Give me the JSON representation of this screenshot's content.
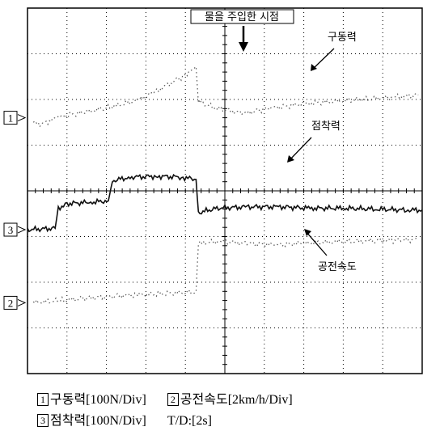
{
  "chart_data": {
    "type": "line",
    "title": "",
    "xlabel": "",
    "ylabel": "",
    "grid": true,
    "x_divisions": 10,
    "y_divisions": 8,
    "x_unit_per_div": "2s",
    "markers": [
      {
        "id": "marker-1",
        "label": "1",
        "y_div": 5.6
      },
      {
        "id": "marker-3",
        "label": "3",
        "y_div": 3.15
      },
      {
        "id": "marker-2",
        "label": "2",
        "y_div": 1.55
      }
    ],
    "event": {
      "label": "물을 주입한 시점",
      "x_div": 4.3
    },
    "series": [
      {
        "name": "구동력",
        "style": "dotted",
        "color": "#555555",
        "points": [
          [
            0.15,
            5.5
          ],
          [
            0.35,
            5.45
          ],
          [
            0.8,
            5.62
          ],
          [
            1.5,
            5.72
          ],
          [
            2.2,
            5.85
          ],
          [
            2.8,
            5.98
          ],
          [
            3.2,
            6.15
          ],
          [
            3.7,
            6.4
          ],
          [
            4.05,
            6.55
          ],
          [
            4.27,
            6.72
          ],
          [
            4.33,
            5.95
          ],
          [
            4.8,
            5.8
          ],
          [
            5.5,
            5.7
          ],
          [
            6.2,
            5.82
          ],
          [
            7.0,
            5.9
          ],
          [
            7.8,
            5.95
          ],
          [
            8.5,
            6.0
          ],
          [
            9.3,
            6.05
          ],
          [
            9.9,
            6.1
          ]
        ]
      },
      {
        "name": "점착력",
        "style": "solid",
        "color": "#111111",
        "points": [
          [
            0.0,
            3.15
          ],
          [
            0.7,
            3.18
          ],
          [
            0.78,
            3.62
          ],
          [
            1.0,
            3.72
          ],
          [
            1.6,
            3.75
          ],
          [
            2.05,
            3.78
          ],
          [
            2.15,
            4.22
          ],
          [
            2.6,
            4.3
          ],
          [
            3.3,
            4.32
          ],
          [
            3.9,
            4.3
          ],
          [
            4.27,
            4.25
          ],
          [
            4.33,
            3.52
          ],
          [
            4.8,
            3.62
          ],
          [
            5.6,
            3.65
          ],
          [
            6.4,
            3.65
          ],
          [
            7.2,
            3.62
          ],
          [
            8.0,
            3.62
          ],
          [
            8.8,
            3.6
          ],
          [
            9.6,
            3.58
          ],
          [
            10.0,
            3.58
          ]
        ]
      },
      {
        "name": "공전속도",
        "style": "dotted",
        "color": "#555555",
        "points": [
          [
            0.15,
            1.55
          ],
          [
            0.8,
            1.6
          ],
          [
            1.5,
            1.65
          ],
          [
            2.2,
            1.7
          ],
          [
            2.8,
            1.73
          ],
          [
            3.5,
            1.75
          ],
          [
            4.27,
            1.78
          ],
          [
            4.33,
            2.85
          ],
          [
            4.9,
            2.9
          ],
          [
            5.6,
            2.85
          ],
          [
            6.3,
            2.82
          ],
          [
            7.0,
            2.85
          ],
          [
            7.8,
            2.88
          ],
          [
            8.6,
            2.9
          ],
          [
            9.5,
            2.92
          ],
          [
            9.9,
            2.93
          ]
        ]
      }
    ],
    "annotations": [
      {
        "id": "ann-drive",
        "text": "구동력"
      },
      {
        "id": "ann-adhesion",
        "text": "점착력"
      },
      {
        "id": "ann-speed",
        "text": "공전속도"
      }
    ],
    "legend": [
      {
        "num": "1",
        "text": "구동력[100N/Div]"
      },
      {
        "num": "2",
        "text": "공전속도[2km/h/Div]"
      },
      {
        "num": "3",
        "text": "점착력[100N/Div]"
      },
      {
        "num": "",
        "text": "T/D:[2s]"
      }
    ]
  }
}
